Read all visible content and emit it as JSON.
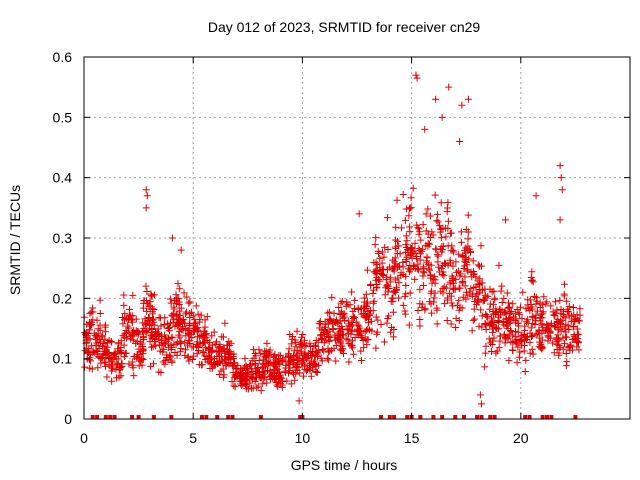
{
  "chart_data": {
    "type": "scatter",
    "title": "Day 012 of 2023, SRMTID for receiver cn29",
    "xlabel": "GPS time / hours",
    "ylabel": "SRMTID / TECUs",
    "xlim": [
      0,
      25
    ],
    "ylim": [
      0,
      0.6
    ],
    "x_ticks": [
      0,
      5,
      10,
      15,
      20
    ],
    "x_tick_labels": [
      "0",
      "5",
      "10",
      "15",
      "20"
    ],
    "y_ticks": [
      0,
      0.1,
      0.2,
      0.3,
      0.4,
      0.5,
      0.6
    ],
    "y_tick_labels": [
      "0",
      "0.1",
      "0.2",
      "0.3",
      "0.4",
      "0.5",
      "0.6"
    ],
    "grid": true,
    "marker": "plus",
    "series_color": "#e00000",
    "cluster_mean": [
      {
        "x": 0.1,
        "y": 0.12
      },
      {
        "x": 0.5,
        "y": 0.14
      },
      {
        "x": 1.0,
        "y": 0.11
      },
      {
        "x": 1.5,
        "y": 0.1
      },
      {
        "x": 2.0,
        "y": 0.15
      },
      {
        "x": 2.5,
        "y": 0.12
      },
      {
        "x": 2.9,
        "y": 0.17
      },
      {
        "x": 3.3,
        "y": 0.14
      },
      {
        "x": 3.8,
        "y": 0.13
      },
      {
        "x": 4.2,
        "y": 0.17
      },
      {
        "x": 4.6,
        "y": 0.15
      },
      {
        "x": 5.0,
        "y": 0.14
      },
      {
        "x": 5.5,
        "y": 0.12
      },
      {
        "x": 6.0,
        "y": 0.1
      },
      {
        "x": 6.5,
        "y": 0.11
      },
      {
        "x": 7.0,
        "y": 0.08
      },
      {
        "x": 7.5,
        "y": 0.07
      },
      {
        "x": 8.0,
        "y": 0.08
      },
      {
        "x": 8.5,
        "y": 0.09
      },
      {
        "x": 9.0,
        "y": 0.08
      },
      {
        "x": 9.5,
        "y": 0.1
      },
      {
        "x": 10.0,
        "y": 0.11
      },
      {
        "x": 10.5,
        "y": 0.1
      },
      {
        "x": 11.0,
        "y": 0.14
      },
      {
        "x": 11.5,
        "y": 0.15
      },
      {
        "x": 12.0,
        "y": 0.15
      },
      {
        "x": 12.5,
        "y": 0.15
      },
      {
        "x": 13.0,
        "y": 0.18
      },
      {
        "x": 13.5,
        "y": 0.22
      },
      {
        "x": 14.0,
        "y": 0.22
      },
      {
        "x": 14.5,
        "y": 0.25
      },
      {
        "x": 15.0,
        "y": 0.28
      },
      {
        "x": 15.5,
        "y": 0.27
      },
      {
        "x": 16.0,
        "y": 0.26
      },
      {
        "x": 16.5,
        "y": 0.28
      },
      {
        "x": 17.0,
        "y": 0.23
      },
      {
        "x": 17.5,
        "y": 0.25
      },
      {
        "x": 18.0,
        "y": 0.2
      },
      {
        "x": 18.5,
        "y": 0.16
      },
      {
        "x": 19.0,
        "y": 0.17
      },
      {
        "x": 19.5,
        "y": 0.15
      },
      {
        "x": 20.0,
        "y": 0.14
      },
      {
        "x": 20.5,
        "y": 0.18
      },
      {
        "x": 21.0,
        "y": 0.15
      },
      {
        "x": 21.5,
        "y": 0.15
      },
      {
        "x": 22.0,
        "y": 0.16
      },
      {
        "x": 22.5,
        "y": 0.14
      }
    ],
    "highlight_points": [
      {
        "x": 2.85,
        "y": 0.38
      },
      {
        "x": 2.9,
        "y": 0.37
      },
      {
        "x": 2.85,
        "y": 0.35
      },
      {
        "x": 4.05,
        "y": 0.3
      },
      {
        "x": 4.45,
        "y": 0.28
      },
      {
        "x": 15.2,
        "y": 0.57
      },
      {
        "x": 15.25,
        "y": 0.565
      },
      {
        "x": 16.1,
        "y": 0.53
      },
      {
        "x": 16.4,
        "y": 0.5
      },
      {
        "x": 16.7,
        "y": 0.55
      },
      {
        "x": 17.3,
        "y": 0.52
      },
      {
        "x": 17.6,
        "y": 0.53
      },
      {
        "x": 17.2,
        "y": 0.46
      },
      {
        "x": 15.6,
        "y": 0.48
      },
      {
        "x": 12.6,
        "y": 0.34
      },
      {
        "x": 20.7,
        "y": 0.37
      },
      {
        "x": 21.8,
        "y": 0.42
      },
      {
        "x": 21.85,
        "y": 0.4
      },
      {
        "x": 21.9,
        "y": 0.38
      },
      {
        "x": 21.8,
        "y": 0.33
      },
      {
        "x": 19.3,
        "y": 0.33
      },
      {
        "x": 18.15,
        "y": 0.04
      },
      {
        "x": 18.2,
        "y": 0.025
      },
      {
        "x": 9.85,
        "y": 0.03
      }
    ],
    "baseline_marks_x": [
      0.4,
      0.6,
      1.0,
      1.2,
      1.4,
      2.2,
      2.5,
      3.2,
      4.0,
      5.4,
      5.6,
      6.1,
      6.6,
      6.8,
      8.1,
      9.9,
      10.0,
      13.6,
      14.0,
      14.2,
      14.8,
      15.0,
      15.4,
      16.0,
      16.4,
      17.0,
      17.4,
      18.0,
      18.2,
      18.6,
      18.8,
      20.2,
      20.4,
      21.0,
      21.2,
      21.4,
      22.5
    ]
  }
}
